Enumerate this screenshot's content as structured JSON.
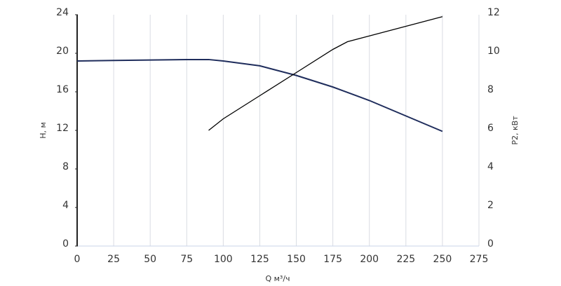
{
  "chart_data": {
    "type": "line",
    "xlabel": "Q м³/ч",
    "ylabel": "H, м",
    "y2label": "P2, кВт",
    "xlim": [
      0,
      275
    ],
    "xticks": [
      0,
      25,
      50,
      75,
      100,
      125,
      150,
      175,
      200,
      225,
      250,
      275
    ],
    "ylim": [
      0,
      24
    ],
    "yticks": [
      0,
      4,
      8,
      12,
      16,
      20,
      24
    ],
    "y2lim": [
      0,
      12
    ],
    "y2ticks": [
      0,
      2,
      4,
      6,
      8,
      10,
      12
    ],
    "grid": true,
    "series": [
      {
        "color": "#1f2d5c",
        "x": [
          0,
          25,
          50,
          75,
          90,
          100,
          125,
          150,
          175,
          200,
          225,
          250
        ],
        "values": [
          19.2,
          19.25,
          19.3,
          19.35,
          19.35,
          19.2,
          18.7,
          17.7,
          16.5,
          15.1,
          13.5,
          11.9
        ]
      },
      {
        "color": "#000000",
        "axis": "y2",
        "x": [
          90,
          100,
          125,
          150,
          175,
          185,
          200,
          225,
          250
        ],
        "values": [
          6.0,
          6.6,
          7.8,
          9.0,
          10.2,
          10.6,
          10.9,
          11.4,
          11.9
        ]
      }
    ]
  }
}
